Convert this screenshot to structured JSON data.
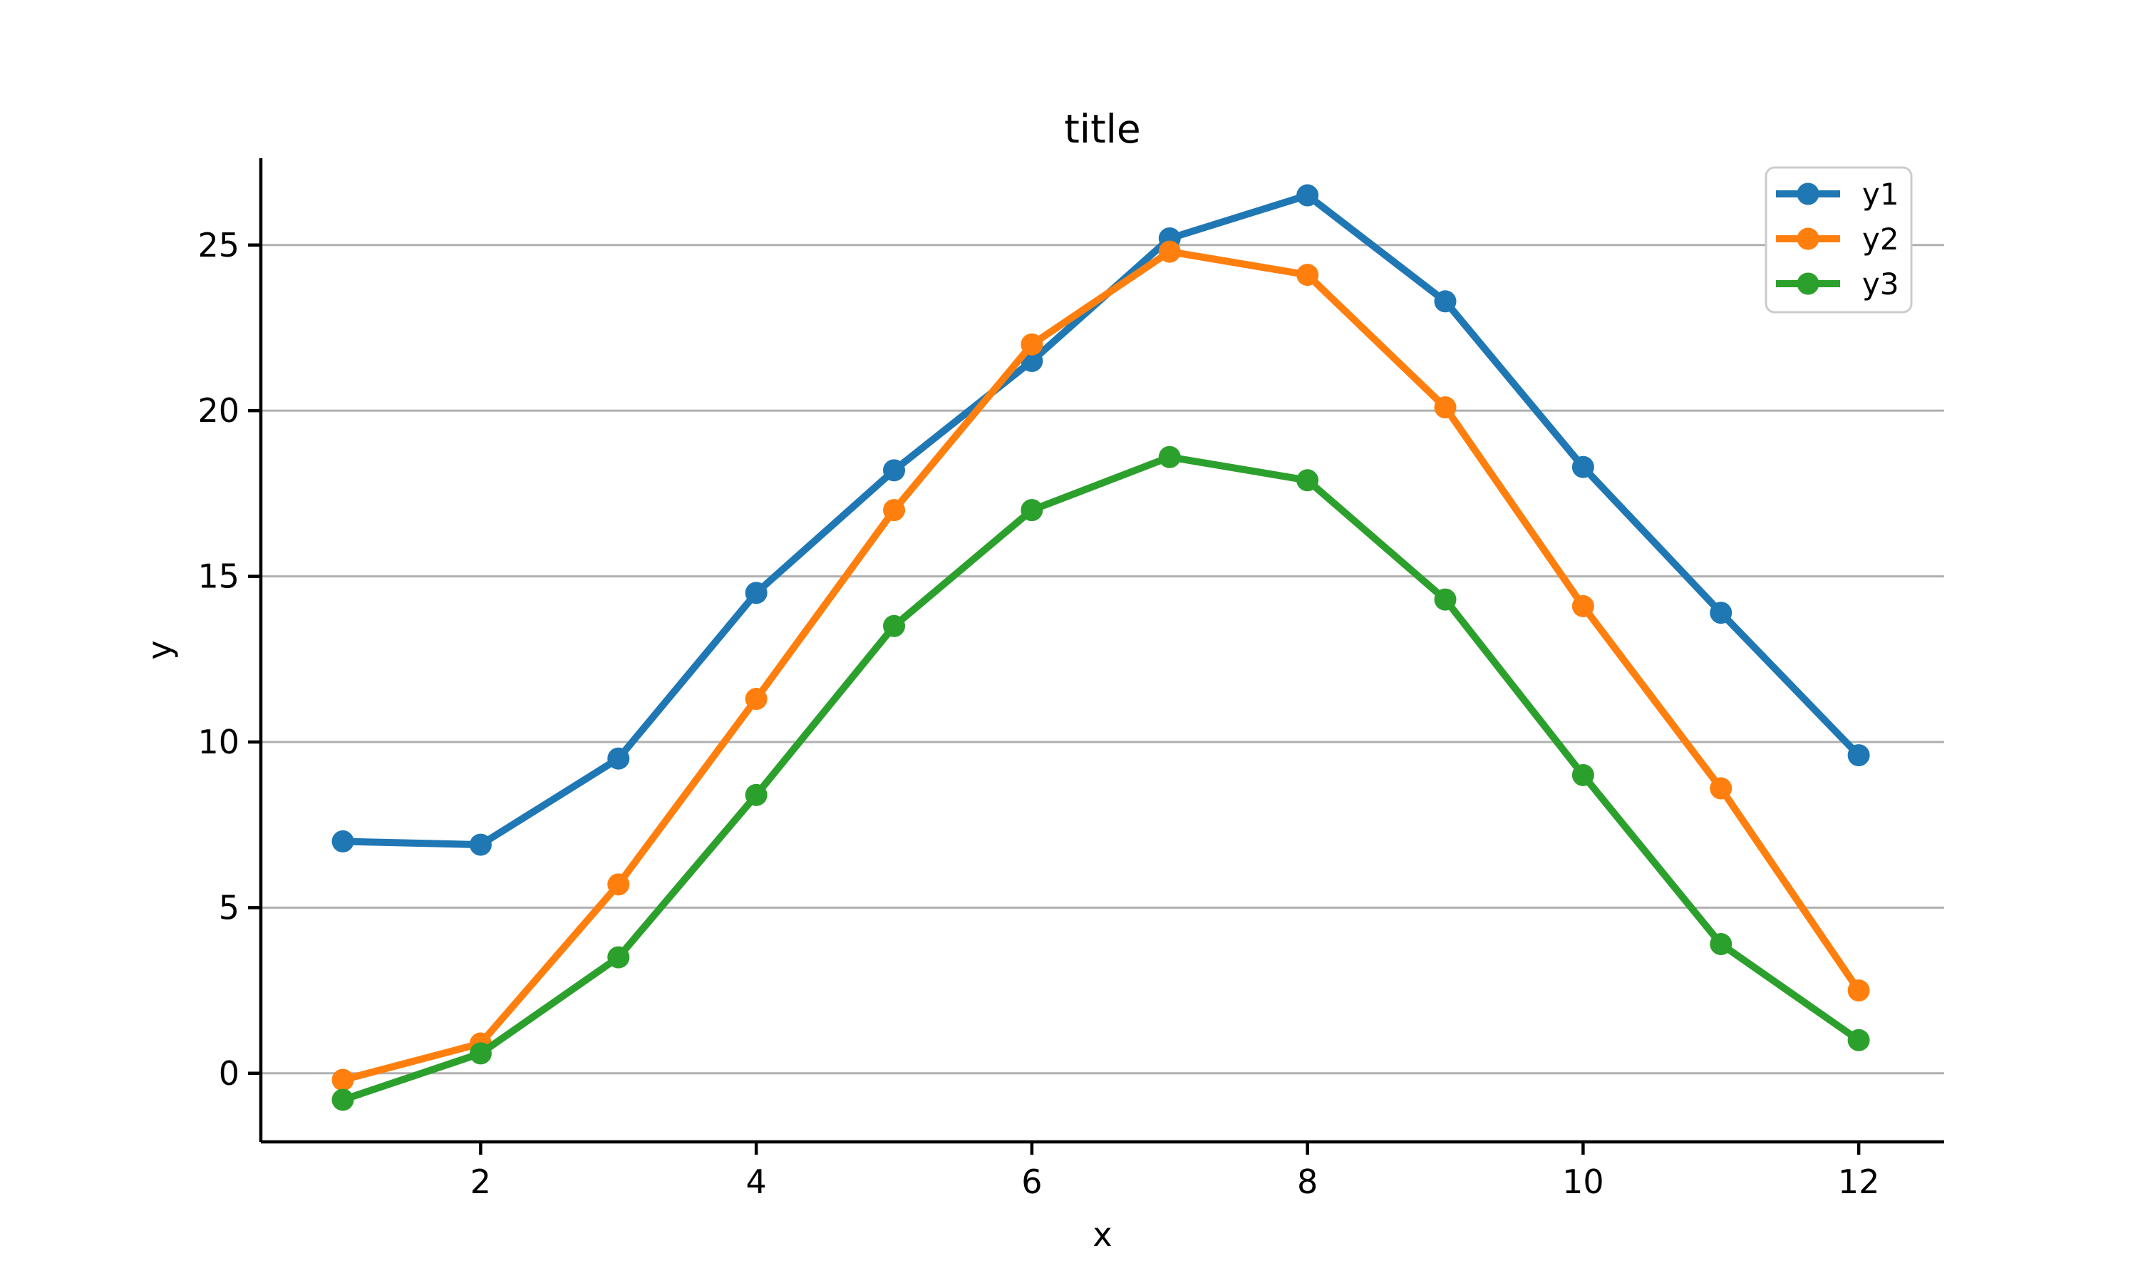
{
  "chart_data": {
    "type": "line",
    "title": "title",
    "xlabel": "x",
    "ylabel": "y",
    "x": [
      1,
      2,
      3,
      4,
      5,
      6,
      7,
      8,
      9,
      10,
      11,
      12
    ],
    "series": [
      {
        "name": "y1",
        "color": "#1f77b4",
        "values": [
          7.0,
          6.9,
          9.5,
          14.5,
          18.2,
          21.5,
          25.2,
          26.5,
          23.3,
          18.3,
          13.9,
          9.6
        ]
      },
      {
        "name": "y2",
        "color": "#ff7f0e",
        "values": [
          -0.2,
          0.9,
          5.7,
          11.3,
          17.0,
          22.0,
          24.8,
          24.1,
          20.1,
          14.1,
          8.6,
          2.5
        ]
      },
      {
        "name": "y3",
        "color": "#2ca02c",
        "values": [
          -0.8,
          0.6,
          3.5,
          8.4,
          13.5,
          17.0,
          18.6,
          17.9,
          14.3,
          9.0,
          3.9,
          1.0
        ]
      }
    ],
    "x_ticks": [
      "2",
      "4",
      "6",
      "8",
      "10",
      "12"
    ],
    "x_tick_values": [
      2,
      4,
      6,
      8,
      10,
      12
    ],
    "y_ticks": [
      "0",
      "5",
      "10",
      "15",
      "20",
      "25"
    ],
    "y_tick_values": [
      0,
      5,
      10,
      15,
      20,
      25
    ],
    "x_range": [
      0.405,
      12.62
    ],
    "y_range": [
      -2.07,
      27.62
    ],
    "grid": "horizontal-only",
    "legend": {
      "position": "upper-right",
      "entries": [
        "y1",
        "y2",
        "y3"
      ]
    },
    "colors": {
      "grid": "#b0b0b0",
      "spine": "#000000",
      "legend_border": "#cccccc",
      "background": "#ffffff",
      "text": "#000000"
    }
  }
}
